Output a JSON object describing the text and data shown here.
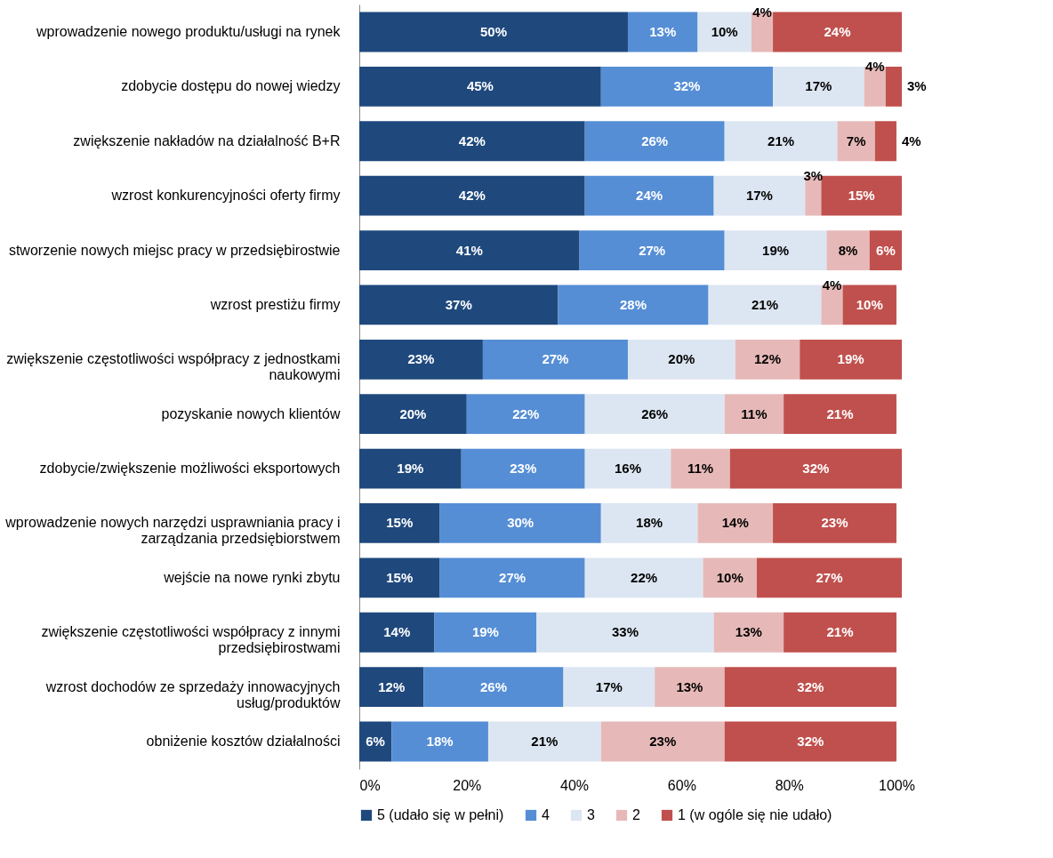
{
  "chart_data": {
    "type": "bar",
    "orientation": "horizontal",
    "stacked": true,
    "categories": [
      "wprowadzenie nowego produktu/usługi na rynek",
      "zdobycie dostępu do nowej wiedzy",
      "zwiększenie nakładów na działalność B+R",
      "wzrost konkurencyjności oferty firmy",
      "stworzenie nowych miejsc pracy w przedsiębirostwie",
      "wzrost prestiżu firmy",
      "zwiększenie częstotliwości współpracy z jednostkami naukowymi",
      "pozyskanie nowych klientów",
      "zdobycie/zwiększenie możliwości eksportowych",
      "wprowadzenie nowych narzędzi usprawniania pracy i zarządzania przedsiębiorstwem",
      "wejście na nowe rynki zbytu",
      "zwiększenie częstotliwości współpracy z innymi przedsiębirostwami",
      "wzrost dochodów ze sprzedaży innowacyjnych usług/produktów",
      "obniżenie kosztów działalności"
    ],
    "series": [
      {
        "name": "5 (udało się w pełni)",
        "color": "#1f497d",
        "values": [
          50,
          45,
          42,
          42,
          41,
          37,
          23,
          20,
          19,
          15,
          15,
          14,
          12,
          6
        ],
        "value_labels": [
          "50%",
          "45%",
          "42%",
          "42%",
          "41%",
          "37%",
          "23%",
          "20%",
          "19%",
          "15%",
          "15%",
          "14%",
          "12%",
          "6%"
        ]
      },
      {
        "name": "4",
        "color": "#558ed5",
        "values": [
          13,
          32,
          26,
          24,
          27,
          28,
          27,
          22,
          23,
          30,
          27,
          19,
          26,
          18
        ],
        "value_labels": [
          "13%",
          "32%",
          "26%",
          "24%",
          "27%",
          "28%",
          "27%",
          "22%",
          "23%",
          "30%",
          "27%",
          "19%",
          "26%",
          "18%"
        ]
      },
      {
        "name": "3",
        "color": "#dce6f2",
        "values": [
          10,
          17,
          21,
          17,
          19,
          21,
          20,
          26,
          16,
          18,
          22,
          33,
          17,
          21
        ],
        "value_labels": [
          "10%",
          "17%",
          "21%",
          "17%",
          "19%",
          "21%",
          "20%",
          "26%",
          "16%",
          "18%",
          "22%",
          "33%",
          "17%",
          "21%"
        ]
      },
      {
        "name": "2",
        "color": "#e6b9b8",
        "values": [
          4,
          4,
          7,
          3,
          8,
          4,
          12,
          11,
          11,
          14,
          10,
          13,
          13,
          23
        ],
        "value_labels": [
          "4%",
          "4%",
          "7%",
          "3%",
          "8%",
          "4%",
          "12%",
          "11%",
          "11%",
          "14%",
          "10%",
          "13%",
          "13%",
          "23%"
        ]
      },
      {
        "name": "1 (w ogóle się nie udało)",
        "color": "#c0504d",
        "values": [
          24,
          3,
          4,
          15,
          6,
          10,
          19,
          21,
          32,
          23,
          27,
          21,
          32,
          32
        ],
        "value_labels": [
          "24%",
          "3%",
          "4%",
          "15%",
          "6%",
          "10%",
          "19%",
          "21%",
          "32%",
          "23%",
          "27%",
          "21%",
          "32%",
          "32%"
        ]
      }
    ],
    "xlim": [
      0,
      101
    ],
    "xticks": [
      {
        "value": 0,
        "label": "0%"
      },
      {
        "value": 20,
        "label": "20%"
      },
      {
        "value": 40,
        "label": "40%"
      },
      {
        "value": 60,
        "label": "60%"
      },
      {
        "value": 80,
        "label": "80%"
      },
      {
        "value": 100,
        "label": "100%"
      }
    ],
    "grid": false,
    "legend": "bottom"
  }
}
